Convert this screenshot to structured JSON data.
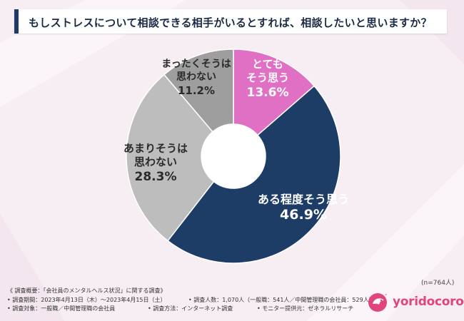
{
  "title": "もしストレスについて相談できる相手がいるとすれば、相談したいと思いますか？",
  "sample_note": "(n=764人)",
  "notes": {
    "line1": "《 調査概要：「会社員のメンタルヘルス状況」に関する調査》",
    "line2a": "• 調査期間：2023年4月13日（木）〜2023年4月15日（土）",
    "line2b": "• 調査人数：1,070人（一般職：541人／中間管理職の会社員：529人）",
    "line3a": "• 調査対象：一般職／中間管理職の会社員",
    "line3b": "• 調査方法：インターネット調査",
    "line3c": "• モニター提供元：ゼネラルリサーチ"
  },
  "logo_text": "yoridocoro",
  "colors": {
    "accent": "#1f3a64",
    "brand": "#e0457b"
  },
  "chart_data": {
    "type": "pie",
    "donut": true,
    "start_angle_deg": 0,
    "direction": "clockwise",
    "slices": [
      {
        "label_lines": [
          "とても",
          "そう思う"
        ],
        "value": 13.6,
        "value_text": "13.6%",
        "color": "#e070c4",
        "text_color": "#ffffff"
      },
      {
        "label_lines": [
          "ある程度そう思う"
        ],
        "value": 46.9,
        "value_text": "46.9%",
        "color": "#1d3d67",
        "text_color": "#ffffff"
      },
      {
        "label_lines": [
          "あまりそうは",
          "思わない"
        ],
        "value": 28.3,
        "value_text": "28.3%",
        "color": "#bdbdbd",
        "text_color": "#2a2a2a"
      },
      {
        "label_lines": [
          "まったくそうは",
          "思わない"
        ],
        "value": 11.2,
        "value_text": "11.2%",
        "color": "#9e9e9e",
        "text_color": "#2a2a2a"
      }
    ]
  }
}
